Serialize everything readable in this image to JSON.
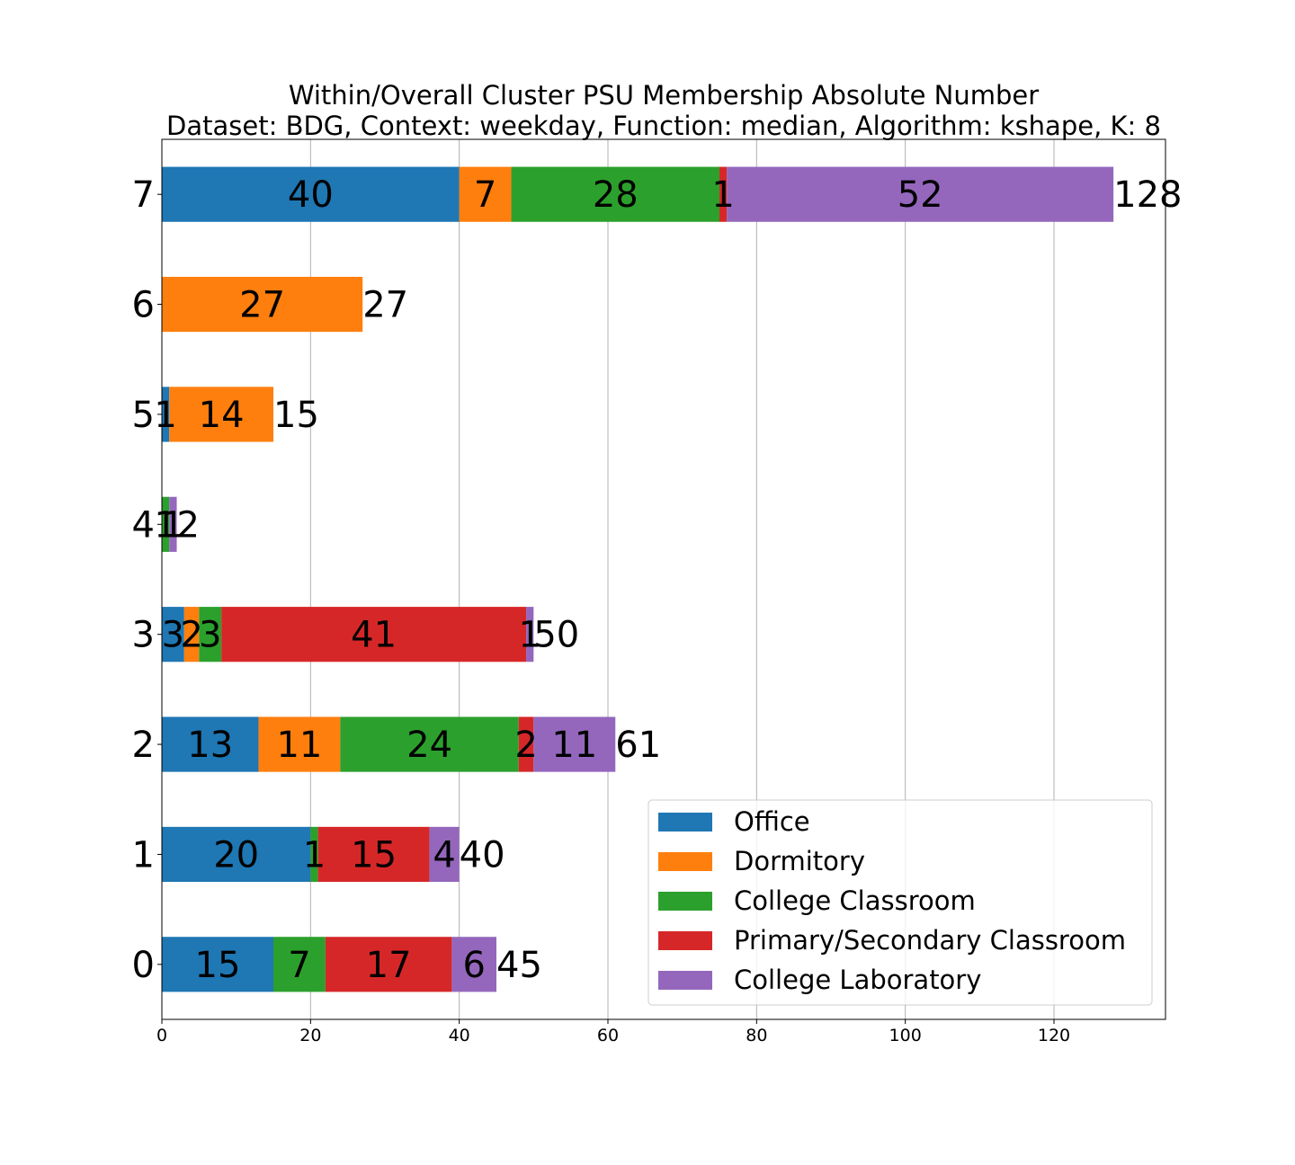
{
  "chart_data": {
    "type": "bar",
    "orientation": "horizontal",
    "stacked": true,
    "title": "Within/Overall Cluster PSU Membership Absolute Number",
    "subtitle": "Dataset: BDG, Context: weekday, Function: median, Algorithm: kshape, K: 8",
    "categories": [
      "0",
      "1",
      "2",
      "3",
      "4",
      "5",
      "6",
      "7"
    ],
    "xlim": [
      0,
      135
    ],
    "xticks": [
      0,
      20,
      40,
      60,
      80,
      100,
      120
    ],
    "grid": "x",
    "legend_position": "lower-right",
    "series": [
      {
        "name": "Office",
        "color": "#1f77b4",
        "values": [
          15,
          20,
          13,
          3,
          0,
          1,
          0,
          40
        ]
      },
      {
        "name": "Dormitory",
        "color": "#ff7f0e",
        "values": [
          0,
          0,
          11,
          2,
          0,
          14,
          27,
          7
        ]
      },
      {
        "name": "College Classroom",
        "color": "#2ca02c",
        "values": [
          7,
          1,
          24,
          3,
          1,
          0,
          0,
          28
        ]
      },
      {
        "name": "Primary/Secondary Classroom",
        "color": "#d62728",
        "values": [
          17,
          15,
          2,
          41,
          0,
          0,
          0,
          1
        ]
      },
      {
        "name": "College Laboratory",
        "color": "#9467bd",
        "values": [
          6,
          4,
          11,
          1,
          1,
          0,
          0,
          52
        ]
      }
    ],
    "totals": [
      45,
      40,
      61,
      50,
      2,
      15,
      27,
      128
    ]
  }
}
